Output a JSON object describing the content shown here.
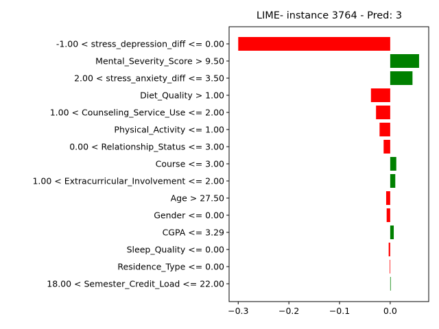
{
  "chart_data": {
    "type": "bar",
    "orientation": "horizontal",
    "title": "LIME- instance 3764 - Pred: 3",
    "xlabel": "",
    "ylabel": "",
    "xlim": [
      -0.318,
      0.076
    ],
    "xticks": [
      -0.3,
      -0.2,
      -0.1,
      0.0
    ],
    "xtick_labels": [
      "−0.3",
      "−0.2",
      "−0.1",
      "0.0"
    ],
    "grid": false,
    "colors": {
      "positive": "#008000",
      "negative": "#ff0000"
    },
    "categories": [
      "-1.00 < stress_depression_diff <= 0.00",
      "Mental_Severity_Score > 9.50",
      "2.00 < stress_anxiety_diff <= 3.50",
      "Diet_Quality > 1.00",
      "1.00 < Counseling_Service_Use <= 2.00",
      "Physical_Activity <= 1.00",
      "0.00 < Relationship_Status <= 3.00",
      "Course <= 3.00",
      "1.00 < Extracurricular_Involvement <= 2.00",
      "Age > 27.50",
      "Gender <= 0.00",
      "CGPA <= 3.29",
      "Sleep_Quality <= 0.00",
      "Residence_Type <= 0.00",
      "18.00 < Semester_Credit_Load <= 22.00"
    ],
    "values": [
      -0.3,
      0.057,
      0.044,
      -0.038,
      -0.028,
      -0.021,
      -0.013,
      0.012,
      0.01,
      -0.008,
      -0.007,
      0.007,
      -0.003,
      -0.001,
      0.001
    ]
  }
}
